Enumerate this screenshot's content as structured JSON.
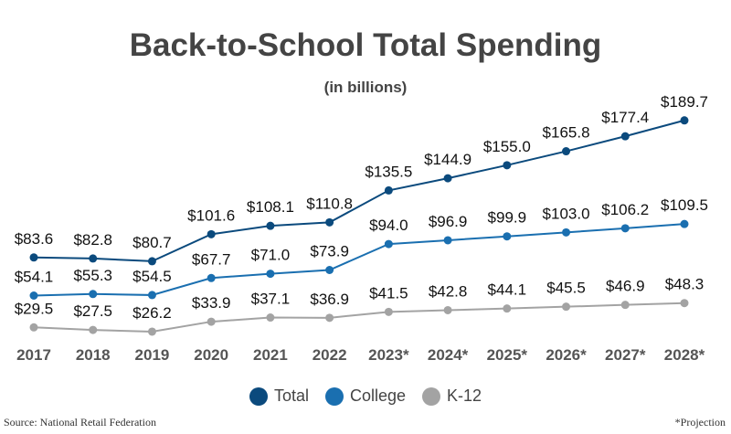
{
  "chart_data": {
    "type": "line",
    "title": "Back-to-School Total Spending",
    "subtitle": "(in billions)",
    "categories": [
      "2017",
      "2018",
      "2019",
      "2020",
      "2021",
      "2022",
      "2023*",
      "2024*",
      "2025*",
      "2026*",
      "2027*",
      "2028*"
    ],
    "series": [
      {
        "name": "Total",
        "color": "#0b4a7d",
        "values": [
          83.6,
          82.8,
          80.7,
          101.6,
          108.1,
          110.8,
          135.5,
          144.9,
          155.0,
          165.8,
          177.4,
          189.7
        ]
      },
      {
        "name": "College",
        "color": "#1a6fb0",
        "values": [
          54.1,
          55.3,
          54.5,
          67.7,
          71.0,
          73.9,
          94.0,
          96.9,
          99.9,
          103.0,
          106.2,
          109.5
        ]
      },
      {
        "name": "K-12",
        "color": "#a3a3a3",
        "values": [
          29.5,
          27.5,
          26.2,
          33.9,
          37.1,
          36.9,
          41.5,
          42.8,
          44.1,
          45.5,
          46.9,
          48.3
        ]
      }
    ],
    "label_prefix": "$",
    "grid": false,
    "legend_placement": "bottom",
    "source": "Source: National Retail Federation",
    "note": "*Projection"
  }
}
